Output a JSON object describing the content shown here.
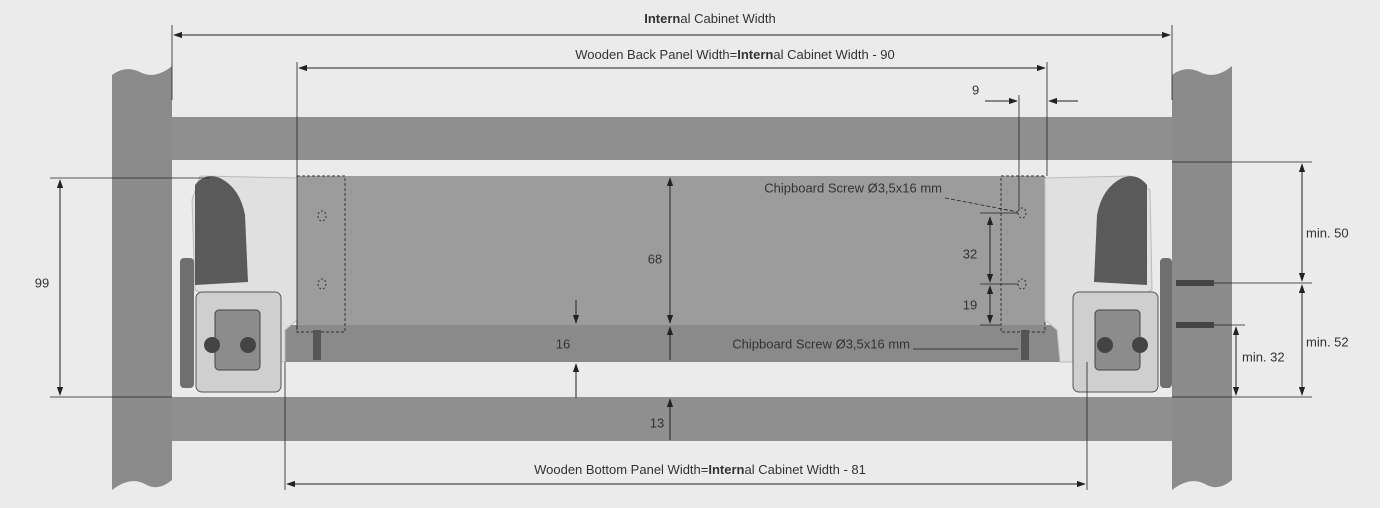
{
  "top_dimension": {
    "bold": "Intern",
    "rest": "al Cabinet Width"
  },
  "back_panel_dimension": {
    "before": "Wooden Back Panel Width=",
    "bold": "Intern",
    "rest": "al Cabinet Width - 90"
  },
  "bottom_panel_dimension": {
    "before": "Wooden Bottom Panel Width=",
    "bold": "Intern",
    "rest": "al Cabinet Width - 81"
  },
  "labels": {
    "offset": "9",
    "screw_upper": "Chipboard Screw Ø3,5x16 mm",
    "screw_lower": "Chipboard Screw Ø3,5x16 mm",
    "hole_spacing": "32",
    "hole_bottom": "19",
    "back_height": "68",
    "total_height": "99",
    "bottom_thickness": "16",
    "base_gap": "13",
    "min_top": "min. 50",
    "min_screws": "min. 52",
    "min_bottom": "min. 32"
  }
}
